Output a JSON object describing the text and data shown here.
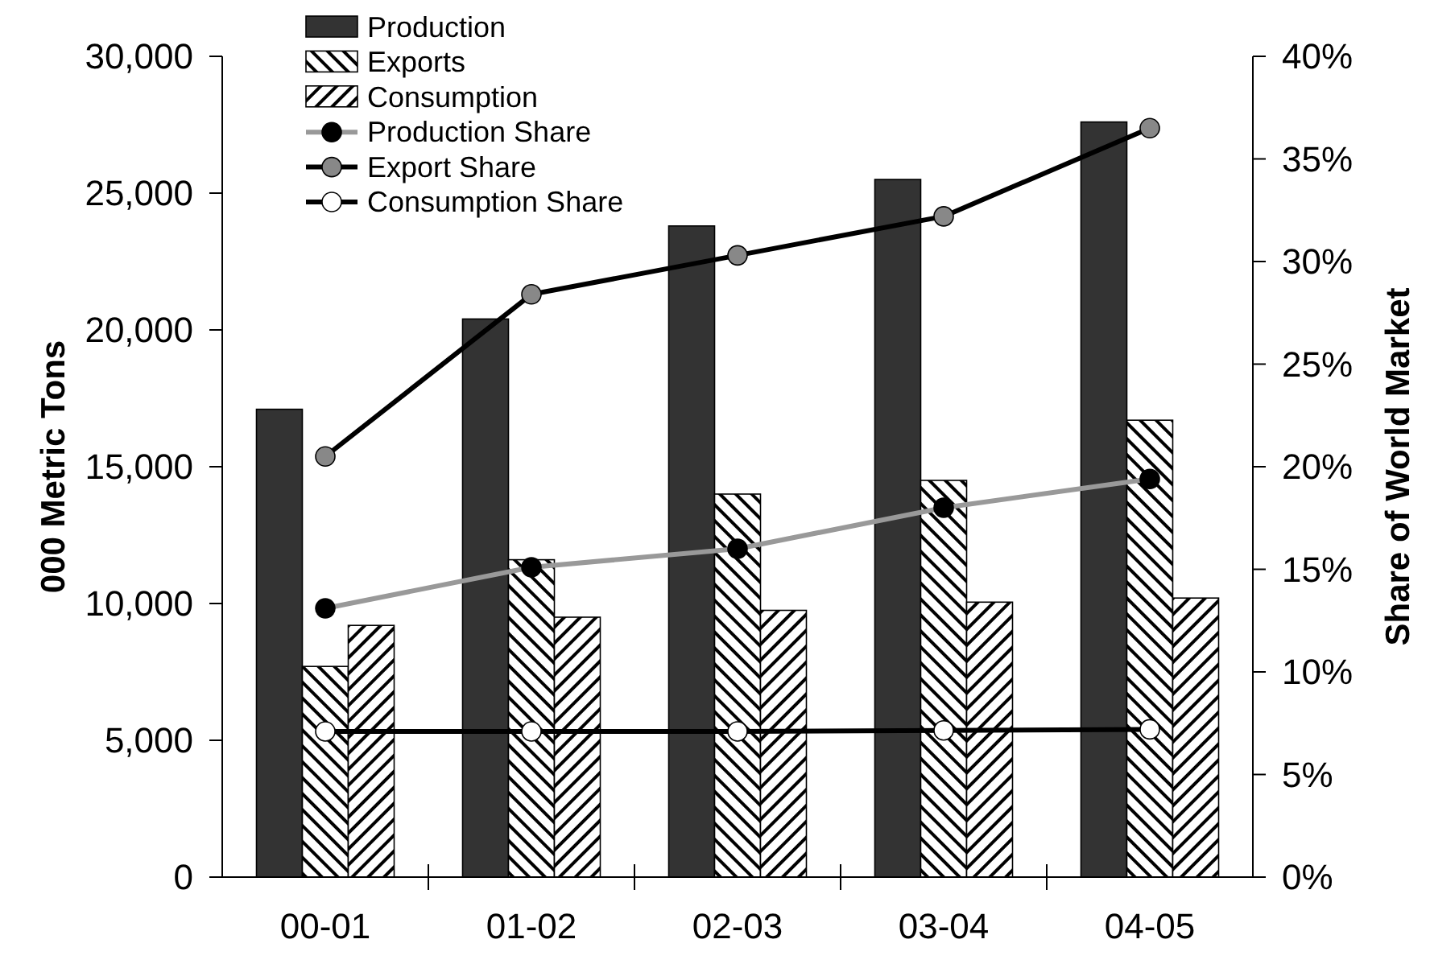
{
  "chart_data": {
    "type": "bar",
    "categories": [
      "00-01",
      "01-02",
      "02-03",
      "03-04",
      "04-05"
    ],
    "ylabel": "000 Metric Tons",
    "y2label": "Share of World Market",
    "ylim": [
      0,
      30000
    ],
    "yticks": [
      {
        "value": 0,
        "label": "0"
      },
      {
        "value": 5000,
        "label": "5,000"
      },
      {
        "value": 10000,
        "label": "10,000"
      },
      {
        "value": 15000,
        "label": "15,000"
      },
      {
        "value": 20000,
        "label": "20,000"
      },
      {
        "value": 25000,
        "label": "25,000"
      },
      {
        "value": 30000,
        "label": "30,000"
      }
    ],
    "y2lim": [
      0,
      40
    ],
    "y2ticks": [
      {
        "value": 0,
        "label": "0%"
      },
      {
        "value": 5,
        "label": "5%"
      },
      {
        "value": 10,
        "label": "10%"
      },
      {
        "value": 15,
        "label": "15%"
      },
      {
        "value": 20,
        "label": "20%"
      },
      {
        "value": 25,
        "label": "25%"
      },
      {
        "value": 30,
        "label": "30%"
      },
      {
        "value": 35,
        "label": "35%"
      },
      {
        "value": 40,
        "label": "40%"
      }
    ],
    "grid": false,
    "legend": "top",
    "marker": "circle",
    "line_style": "solid",
    "series": [
      {
        "name": "Production",
        "color": "#333333",
        "values": [
          17100,
          20400,
          23800,
          25500,
          27600
        ]
      },
      {
        "name": "Exports",
        "color": "#000000",
        "values": [
          7700,
          11600,
          14000,
          14500,
          16700
        ]
      },
      {
        "name": "Consumption",
        "color": "#000000",
        "values": [
          9200,
          9500,
          9750,
          10050,
          10200
        ]
      },
      {
        "name": "Production Share",
        "type": "line",
        "axis": "y2",
        "color": "#000000",
        "values": [
          13.1,
          15.1,
          16.0,
          18.0,
          19.4
        ]
      },
      {
        "name": "Export Share",
        "type": "line",
        "axis": "y2",
        "color": "#888888",
        "values": [
          20.5,
          28.4,
          30.3,
          32.2,
          36.5
        ]
      },
      {
        "name": "Consumption Share",
        "type": "line",
        "axis": "y2",
        "color": "#ffffff",
        "values": [
          7.1,
          7.1,
          7.1,
          7.15,
          7.2
        ]
      }
    ]
  }
}
